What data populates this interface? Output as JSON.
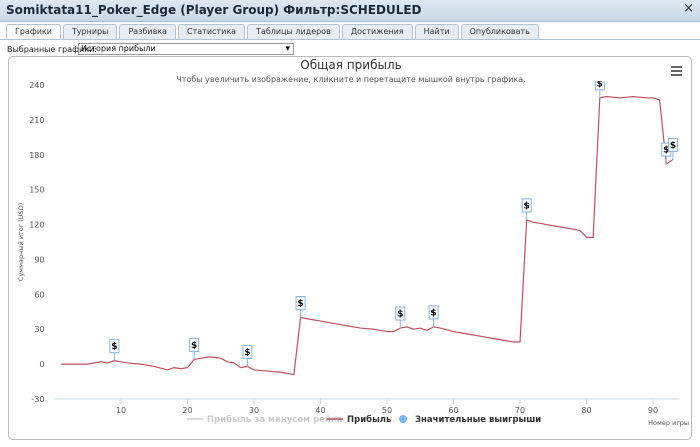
{
  "window": {
    "title": "Somiktata11_Poker_Edge (Player Group) Фильтр:SCHEDULED",
    "close": "×"
  },
  "tabs": [
    "Графики",
    "Турниры",
    "Разбивка",
    "Статистика",
    "Таблицы лидеров",
    "Достижения",
    "Найти",
    "Опубликовать"
  ],
  "selector": {
    "label": "Выбранные графики:",
    "value": "История прибыли"
  },
  "chart_data": {
    "type": "line",
    "title": "Общая прибыль",
    "subtitle": "Чтобы увеличить изображение, кликните и перетащите мышкой внутрь графика.",
    "ylabel": "Суммарный итог (USD)",
    "xlabel": "Номер игры",
    "xlim": [
      0,
      94
    ],
    "xticks": [
      10,
      20,
      30,
      40,
      50,
      60,
      70,
      80,
      90
    ],
    "ylim": [
      -30,
      240
    ],
    "yticks": [
      -30,
      0,
      30,
      60,
      90,
      120,
      150,
      180,
      210,
      240
    ],
    "grid": false,
    "x": [
      1,
      5,
      7,
      8,
      9,
      10,
      11,
      13,
      15,
      17,
      18,
      19,
      20,
      21,
      22,
      23,
      24,
      25,
      26,
      27,
      28,
      29,
      30,
      32,
      34,
      35,
      36,
      37,
      38,
      40,
      42,
      44,
      46,
      48,
      50,
      51,
      52,
      53,
      54,
      55,
      56,
      57,
      58,
      60,
      62,
      64,
      66,
      68,
      69,
      70,
      71,
      72,
      74,
      76,
      78,
      79,
      80,
      81,
      82,
      83,
      85,
      87,
      89,
      90,
      91,
      92,
      93
    ],
    "series": [
      {
        "name": "Прибыль за минусом рейка",
        "color": "#cccccc",
        "visible": false
      },
      {
        "name": "Прибыль",
        "color": "#c0505a",
        "values": [
          0,
          0,
          2,
          1,
          3,
          2,
          1,
          0,
          -2,
          -5,
          -3,
          -4,
          -3,
          4,
          5,
          6,
          6,
          5,
          2,
          1,
          -3,
          -2,
          -5,
          -6,
          -7,
          -8,
          -9,
          40,
          39,
          37,
          35,
          33,
          31,
          30,
          28,
          28,
          31,
          32,
          30,
          31,
          29,
          32,
          31,
          28,
          26,
          24,
          22,
          20,
          19,
          19,
          124,
          122,
          120,
          118,
          116,
          115,
          109,
          109,
          229,
          230,
          229,
          230,
          229,
          229,
          227,
          172,
          176
        ]
      },
      {
        "name": "Значительные выигрыши",
        "color": "#7cb5ec",
        "flag_label": "$",
        "x": [
          9,
          21,
          29,
          37,
          52,
          57,
          71,
          82,
          92,
          93
        ],
        "values": [
          3,
          4,
          -2,
          40,
          31,
          32,
          124,
          229,
          172,
          176
        ]
      }
    ]
  }
}
